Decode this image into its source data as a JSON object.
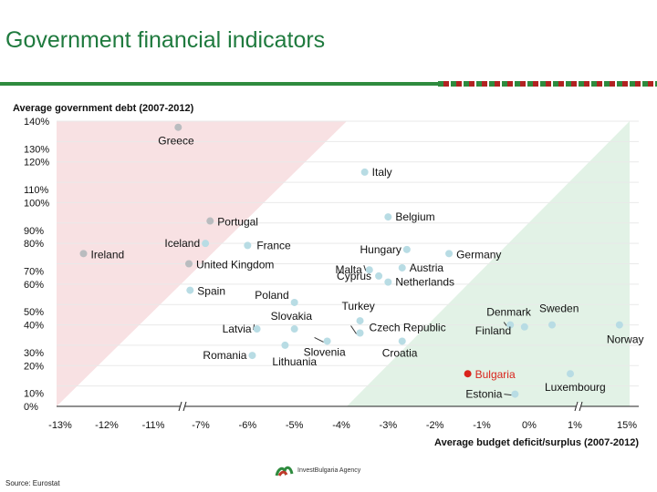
{
  "header": {
    "title": "Government financial indicators"
  },
  "footer": {
    "source": "Source: Eurostat",
    "logo_text": "InvestBulgaria Agency"
  },
  "colors": {
    "title": "#1f7a3e",
    "rule": "#2e8b3e",
    "pink_zone": "#f8e1e3",
    "green_zone": "#e2f2e6",
    "point": "#b8dce4",
    "point_dark": "#b9bcbf",
    "highlight": "#d9241c",
    "grid": "#ffffff"
  },
  "chart_data": {
    "type": "scatter",
    "title": "Average government debt (2007-2012)",
    "xlabel": "Average budget deficit/surplus (2007-2012)",
    "ylabel": "",
    "x_ticks": [
      "-13%",
      "-12%",
      "-11%",
      "-7%",
      "-6%",
      "-5%",
      "-4%",
      "-3%",
      "-2%",
      "-1%",
      "0%",
      "1%",
      "15%"
    ],
    "y_ticks": [
      "0%",
      "10%",
      "20%",
      "30%",
      "40%",
      "50%",
      "60%",
      "70%",
      "80%",
      "90%",
      "100%",
      "110%",
      "120%",
      "130%",
      "140%"
    ],
    "ylim": [
      0,
      140
    ],
    "axis_breaks": [
      "-11% to -7%",
      "1% to 15%"
    ],
    "points": [
      {
        "label": "Greece",
        "x": -8.9,
        "y": 137,
        "style": "dark"
      },
      {
        "label": "Italy",
        "x": -3.5,
        "y": 115,
        "style": "normal"
      },
      {
        "label": "Belgium",
        "x": -3.0,
        "y": 93,
        "style": "normal"
      },
      {
        "label": "Portugal",
        "x": -6.8,
        "y": 91,
        "style": "dark"
      },
      {
        "label": "Iceland",
        "x": -6.9,
        "y": 80,
        "style": "normal"
      },
      {
        "label": "France",
        "x": -6.0,
        "y": 79,
        "style": "normal"
      },
      {
        "label": "Hungary",
        "x": -2.6,
        "y": 77,
        "style": "normal"
      },
      {
        "label": "Ireland",
        "x": -12.5,
        "y": 75,
        "style": "dark"
      },
      {
        "label": "Germany",
        "x": -1.7,
        "y": 75,
        "style": "normal"
      },
      {
        "label": "United Kingdom",
        "x": -8.0,
        "y": 70,
        "style": "dark"
      },
      {
        "label": "Malta",
        "x": -3.4,
        "y": 67,
        "style": "normal"
      },
      {
        "label": "Austria",
        "x": -2.7,
        "y": 68,
        "style": "normal"
      },
      {
        "label": "Cyprus",
        "x": -3.2,
        "y": 64,
        "style": "normal"
      },
      {
        "label": "Netherlands",
        "x": -3.0,
        "y": 61,
        "style": "normal"
      },
      {
        "label": "Spain",
        "x": -7.9,
        "y": 57,
        "style": "normal"
      },
      {
        "label": "Poland",
        "x": -5.0,
        "y": 51,
        "style": "normal"
      },
      {
        "label": "Turkey",
        "x": -3.6,
        "y": 42,
        "style": "normal"
      },
      {
        "label": "Latvia",
        "x": -5.8,
        "y": 38,
        "style": "normal"
      },
      {
        "label": "Slovakia",
        "x": -5.0,
        "y": 38,
        "style": "normal"
      },
      {
        "label": "Czech Republic",
        "x": -3.6,
        "y": 36,
        "style": "normal"
      },
      {
        "label": "Denmark",
        "x": -0.4,
        "y": 40,
        "style": "normal"
      },
      {
        "label": "Sweden",
        "x": 0.5,
        "y": 40,
        "style": "normal"
      },
      {
        "label": "Finland",
        "x": -0.1,
        "y": 39,
        "style": "normal"
      },
      {
        "label": "Norway",
        "x": 13.0,
        "y": 40,
        "style": "normal"
      },
      {
        "label": "Slovenia",
        "x": -4.3,
        "y": 32,
        "style": "normal"
      },
      {
        "label": "Croatia",
        "x": -2.7,
        "y": 32,
        "style": "normal"
      },
      {
        "label": "Lithuania",
        "x": -5.2,
        "y": 30,
        "style": "normal"
      },
      {
        "label": "Romania",
        "x": -5.9,
        "y": 25,
        "style": "normal"
      },
      {
        "label": "Bulgaria",
        "x": -1.3,
        "y": 16,
        "style": "highlight"
      },
      {
        "label": "Luxembourg",
        "x": 0.9,
        "y": 16,
        "style": "normal"
      },
      {
        "label": "Estonia",
        "x": -0.3,
        "y": 6,
        "style": "normal"
      }
    ]
  }
}
